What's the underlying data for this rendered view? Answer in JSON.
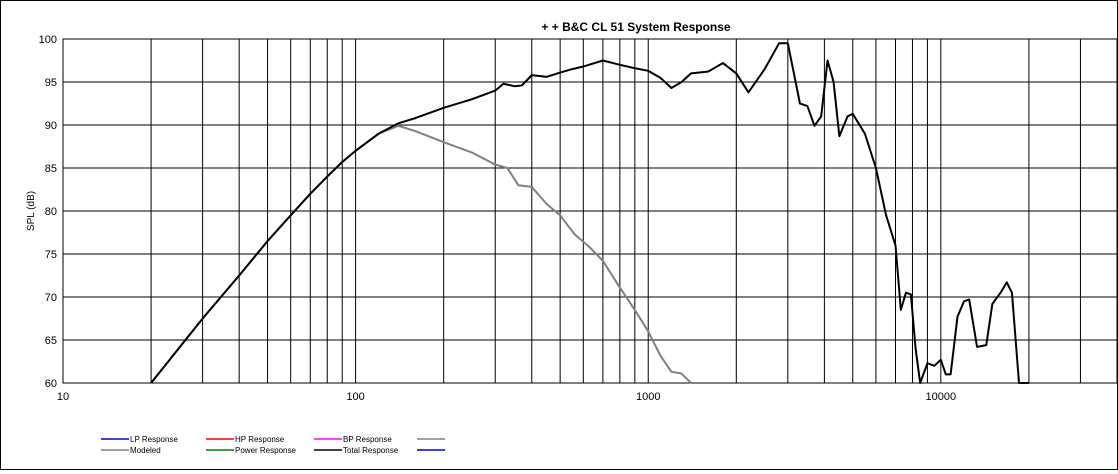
{
  "chart_data": {
    "type": "line",
    "title": "+  + B&C CL 51  System Response",
    "ylabel": "SPL (dB)",
    "xlabel": "",
    "x_scale": "log",
    "xlim": [
      10,
      40000
    ],
    "ylim": [
      60,
      100
    ],
    "grid": true,
    "y_ticks": [
      "100",
      "95",
      "90",
      "85",
      "80",
      "75",
      "70",
      "65",
      "60"
    ],
    "x_ticks": [
      "10",
      "100",
      "1000",
      "10000"
    ],
    "legend": {
      "placement": "bottom-left",
      "entries": [
        {
          "label": "LP Response",
          "color": "#0000cc"
        },
        {
          "label": "HP Response",
          "color": "#ff0000"
        },
        {
          "label": "BP Response",
          "color": "#ff00ff"
        },
        {
          "label": "",
          "color": "#808080"
        },
        {
          "label": "Modeled",
          "color": "#808080"
        },
        {
          "label": "Power Response",
          "color": "#008000"
        },
        {
          "label": "Total Response",
          "color": "#000000"
        },
        {
          "label": "",
          "color": "#0000cc"
        }
      ]
    },
    "series": [
      {
        "name": "Total Response",
        "color": "#000000",
        "points": [
          [
            20,
            60
          ],
          [
            30,
            67.5
          ],
          [
            40,
            72.5
          ],
          [
            50,
            76.5
          ],
          [
            60,
            79.5
          ],
          [
            70,
            82
          ],
          [
            80,
            84
          ],
          [
            90,
            85.7
          ],
          [
            100,
            87
          ],
          [
            120,
            89
          ],
          [
            140,
            90.2
          ],
          [
            160,
            90.8
          ],
          [
            200,
            92
          ],
          [
            250,
            93
          ],
          [
            300,
            94
          ],
          [
            320,
            94.8
          ],
          [
            350,
            94.5
          ],
          [
            370,
            94.6
          ],
          [
            400,
            95.8
          ],
          [
            450,
            95.6
          ],
          [
            500,
            96.1
          ],
          [
            550,
            96.5
          ],
          [
            600,
            96.8
          ],
          [
            700,
            97.5
          ],
          [
            800,
            97
          ],
          [
            900,
            96.6
          ],
          [
            1000,
            96.3
          ],
          [
            1100,
            95.5
          ],
          [
            1200,
            94.3
          ],
          [
            1300,
            95
          ],
          [
            1400,
            96
          ],
          [
            1600,
            96.2
          ],
          [
            1800,
            97.2
          ],
          [
            2000,
            96
          ],
          [
            2200,
            93.8
          ],
          [
            2500,
            96.5
          ],
          [
            2800,
            99.5
          ],
          [
            3000,
            99.5
          ],
          [
            3300,
            92.5
          ],
          [
            3500,
            92.2
          ],
          [
            3700,
            89.9
          ],
          [
            3900,
            91
          ],
          [
            4100,
            97.5
          ],
          [
            4300,
            95
          ],
          [
            4500,
            88.7
          ],
          [
            4800,
            91
          ],
          [
            5000,
            91.3
          ],
          [
            5500,
            89
          ],
          [
            6000,
            85
          ],
          [
            6500,
            79.5
          ],
          [
            7000,
            76
          ],
          [
            7300,
            68.5
          ],
          [
            7600,
            70.5
          ],
          [
            7900,
            70.3
          ],
          [
            8200,
            64
          ],
          [
            8500,
            60
          ],
          [
            9000,
            62.3
          ],
          [
            9500,
            62
          ],
          [
            10000,
            62.7
          ],
          [
            10400,
            61
          ],
          [
            10800,
            61
          ],
          [
            11400,
            67.7
          ],
          [
            12000,
            69.5
          ],
          [
            12500,
            69.7
          ],
          [
            13300,
            64.2
          ],
          [
            14300,
            64.4
          ],
          [
            15000,
            69.2
          ],
          [
            16000,
            70.5
          ],
          [
            16800,
            71.7
          ],
          [
            17500,
            70.5
          ],
          [
            18500,
            60
          ],
          [
            20000,
            60
          ]
        ]
      },
      {
        "name": "Modeled",
        "color": "#808080",
        "points": [
          [
            20,
            60
          ],
          [
            30,
            67.5
          ],
          [
            40,
            72.5
          ],
          [
            50,
            76.5
          ],
          [
            60,
            79.5
          ],
          [
            70,
            82
          ],
          [
            80,
            84
          ],
          [
            90,
            85.7
          ],
          [
            100,
            87
          ],
          [
            120,
            89
          ],
          [
            140,
            89.9
          ],
          [
            160,
            89.3
          ],
          [
            200,
            88
          ],
          [
            250,
            86.8
          ],
          [
            300,
            85.4
          ],
          [
            330,
            85
          ],
          [
            360,
            83
          ],
          [
            400,
            82.8
          ],
          [
            450,
            80.8
          ],
          [
            500,
            79.5
          ],
          [
            560,
            77.3
          ],
          [
            630,
            75.8
          ],
          [
            700,
            74.2
          ],
          [
            800,
            71.1
          ],
          [
            900,
            68.5
          ],
          [
            1000,
            66
          ],
          [
            1100,
            63.2
          ],
          [
            1200,
            61.3
          ],
          [
            1300,
            61.1
          ],
          [
            1400,
            60
          ]
        ]
      }
    ]
  }
}
